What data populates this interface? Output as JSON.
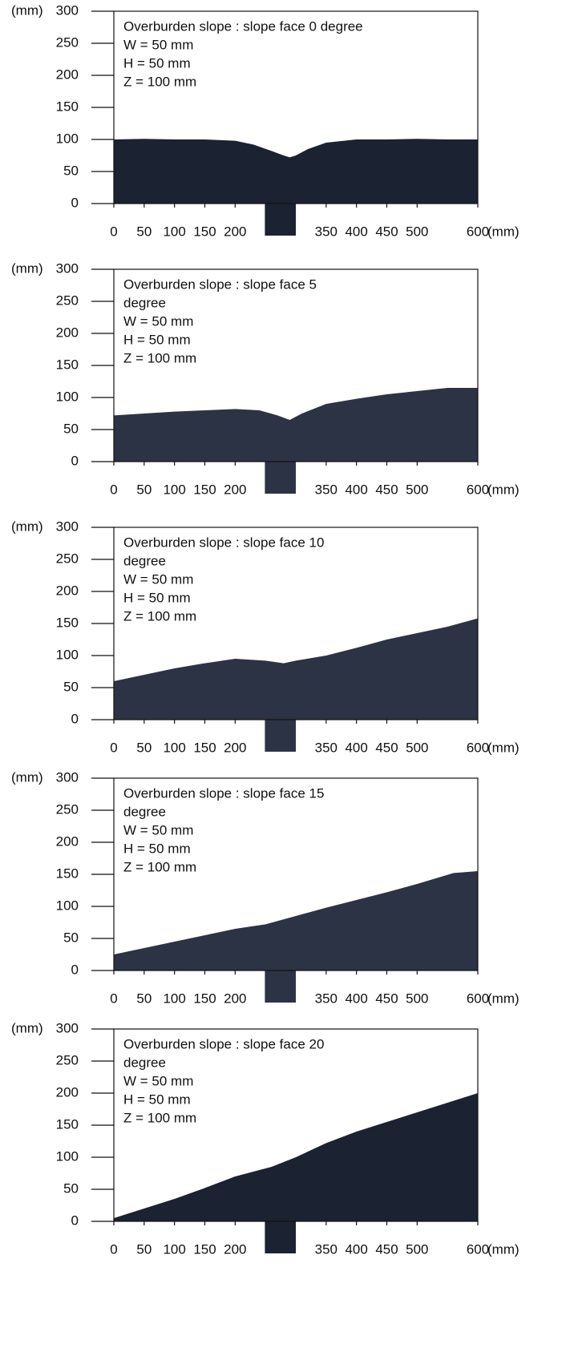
{
  "chart_data": [
    {
      "type": "area",
      "color": "#1b2232",
      "x": [
        0,
        50,
        100,
        150,
        200,
        230,
        260,
        280,
        290,
        300,
        320,
        350,
        400,
        450,
        500,
        550,
        600
      ],
      "values": [
        100,
        101,
        100,
        100,
        98,
        92,
        82,
        75,
        72,
        75,
        85,
        95,
        100,
        100,
        101,
        100,
        100
      ],
      "annotation": [
        "Overburden slope : slope face 0 degree",
        "W = 50 mm",
        "H = 50 mm",
        "Z = 100 mm"
      ],
      "x_unit": "(mm)",
      "y_unit": "(mm)",
      "xlim": [
        0,
        600
      ],
      "ylim": [
        0,
        300
      ],
      "xticks": [
        0,
        50,
        100,
        150,
        200,
        350,
        400,
        450,
        500,
        600
      ],
      "yticks": [
        0,
        50,
        100,
        150,
        200,
        250,
        300
      ]
    },
    {
      "type": "area",
      "color": "#2c3344",
      "x": [
        0,
        50,
        100,
        150,
        200,
        240,
        270,
        290,
        310,
        350,
        400,
        450,
        500,
        550,
        600
      ],
      "values": [
        72,
        75,
        78,
        80,
        82,
        80,
        72,
        65,
        75,
        90,
        98,
        105,
        110,
        115,
        115
      ],
      "annotation": [
        "Overburden slope : slope face 5",
        "degree",
        "W = 50 mm",
        "H = 50 mm",
        "Z = 100 mm"
      ],
      "x_unit": "(mm)",
      "y_unit": "(mm)",
      "xlim": [
        0,
        600
      ],
      "ylim": [
        0,
        300
      ],
      "xticks": [
        0,
        50,
        100,
        150,
        200,
        350,
        400,
        450,
        500,
        600
      ],
      "yticks": [
        0,
        50,
        100,
        150,
        200,
        250,
        300
      ]
    },
    {
      "type": "area",
      "color": "#2c3344",
      "x": [
        0,
        50,
        100,
        150,
        200,
        250,
        280,
        300,
        350,
        400,
        450,
        500,
        550,
        600
      ],
      "values": [
        60,
        70,
        80,
        88,
        95,
        92,
        88,
        92,
        100,
        112,
        125,
        135,
        145,
        158
      ],
      "annotation": [
        "Overburden slope : slope face 10",
        "degree",
        "W = 50 mm",
        "H = 50 mm",
        "Z = 100 mm"
      ],
      "x_unit": "(mm)",
      "y_unit": "(mm)",
      "xlim": [
        0,
        600
      ],
      "ylim": [
        0,
        300
      ],
      "xticks": [
        0,
        50,
        100,
        150,
        200,
        350,
        400,
        450,
        500,
        600
      ],
      "yticks": [
        0,
        50,
        100,
        150,
        200,
        250,
        300
      ]
    },
    {
      "type": "area",
      "color": "#2c3344",
      "x": [
        0,
        50,
        100,
        150,
        200,
        250,
        300,
        350,
        400,
        450,
        500,
        560,
        600
      ],
      "values": [
        25,
        35,
        45,
        55,
        65,
        72,
        85,
        98,
        110,
        122,
        135,
        152,
        155
      ],
      "annotation": [
        "Overburden slope : slope face 15",
        "degree",
        "W = 50 mm",
        "H = 50 mm",
        "Z = 100 mm"
      ],
      "x_unit": "(mm)",
      "y_unit": "(mm)",
      "xlim": [
        0,
        600
      ],
      "ylim": [
        0,
        300
      ],
      "xticks": [
        0,
        50,
        100,
        150,
        200,
        350,
        400,
        450,
        500,
        600
      ],
      "yticks": [
        0,
        50,
        100,
        150,
        200,
        250,
        300
      ]
    },
    {
      "type": "area",
      "color": "#1b2232",
      "x": [
        0,
        50,
        100,
        150,
        200,
        260,
        300,
        350,
        400,
        450,
        500,
        550,
        600
      ],
      "values": [
        5,
        20,
        35,
        52,
        70,
        85,
        100,
        122,
        140,
        155,
        170,
        185,
        200
      ],
      "annotation": [
        "Overburden slope : slope face 20",
        "degree",
        "W = 50 mm",
        "H = 50 mm",
        "Z = 100 mm"
      ],
      "x_unit": "(mm)",
      "y_unit": "(mm)",
      "xlim": [
        0,
        600
      ],
      "ylim": [
        0,
        300
      ],
      "xticks": [
        0,
        50,
        100,
        150,
        200,
        350,
        400,
        450,
        500,
        600
      ],
      "yticks": [
        0,
        50,
        100,
        150,
        200,
        250,
        300
      ]
    }
  ]
}
